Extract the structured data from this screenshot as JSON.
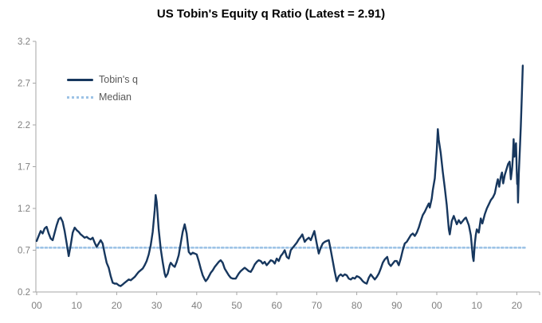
{
  "chart": {
    "title": "US Tobin's Equity q Ratio (Latest = 2.91)",
    "latest_value": "2.91"
  },
  "legend": {
    "series1_label": "Tobin's q",
    "series2_label": "Median"
  },
  "colors": {
    "tobins_q_line": "#17375e",
    "median_line": "#9dc3e6",
    "axis_line": "#a6a6a6",
    "tick_label": "#808080",
    "legend_text": "#595959",
    "title_text": "#000000",
    "background": "#ffffff"
  },
  "chart_data": {
    "type": "line",
    "title": "US Tobin's Equity q Ratio (Latest = 2.91)",
    "xlabel": "",
    "ylabel": "",
    "grid": false,
    "legend_position": "top-left",
    "ylim": [
      0.2,
      3.2
    ],
    "y_ticks": [
      0.2,
      0.7,
      1.2,
      1.7,
      2.2,
      2.7,
      3.2
    ],
    "x_tick_years": [
      1900,
      1910,
      1920,
      1930,
      1940,
      1950,
      1960,
      1970,
      1980,
      1990,
      2000,
      2010,
      2020
    ],
    "x_tick_labels": [
      "00",
      "10",
      "20",
      "30",
      "40",
      "50",
      "60",
      "70",
      "80",
      "90",
      "00",
      "10",
      "20"
    ],
    "xlim": [
      1899.8,
      2025.7
    ],
    "series": [
      {
        "name": "Tobin's q",
        "points": [
          [
            1900,
            0.81
          ],
          [
            1900.5,
            0.87
          ],
          [
            1901,
            0.93
          ],
          [
            1901.5,
            0.9
          ],
          [
            1902,
            0.96
          ],
          [
            1902.5,
            0.98
          ],
          [
            1903,
            0.9
          ],
          [
            1903.5,
            0.84
          ],
          [
            1904,
            0.82
          ],
          [
            1904.5,
            0.91
          ],
          [
            1905,
            1.0
          ],
          [
            1905.5,
            1.07
          ],
          [
            1906,
            1.09
          ],
          [
            1906.5,
            1.04
          ],
          [
            1907,
            0.93
          ],
          [
            1907.5,
            0.78
          ],
          [
            1908,
            0.63
          ],
          [
            1908.5,
            0.76
          ],
          [
            1909,
            0.91
          ],
          [
            1909.5,
            0.97
          ],
          [
            1910,
            0.94
          ],
          [
            1910.5,
            0.92
          ],
          [
            1911,
            0.89
          ],
          [
            1911.5,
            0.87
          ],
          [
            1912,
            0.85
          ],
          [
            1912.5,
            0.86
          ],
          [
            1913,
            0.84
          ],
          [
            1913.5,
            0.83
          ],
          [
            1914,
            0.85
          ],
          [
            1914.5,
            0.79
          ],
          [
            1915,
            0.74
          ],
          [
            1915.5,
            0.78
          ],
          [
            1916,
            0.82
          ],
          [
            1916.5,
            0.78
          ],
          [
            1917,
            0.66
          ],
          [
            1917.5,
            0.55
          ],
          [
            1918,
            0.49
          ],
          [
            1918.5,
            0.39
          ],
          [
            1919,
            0.31
          ],
          [
            1919.5,
            0.3
          ],
          [
            1920,
            0.3
          ],
          [
            1920.5,
            0.28
          ],
          [
            1921,
            0.27
          ],
          [
            1921.5,
            0.29
          ],
          [
            1922,
            0.31
          ],
          [
            1922.5,
            0.33
          ],
          [
            1923,
            0.35
          ],
          [
            1923.5,
            0.34
          ],
          [
            1924,
            0.36
          ],
          [
            1924.5,
            0.38
          ],
          [
            1925,
            0.41
          ],
          [
            1925.5,
            0.44
          ],
          [
            1926,
            0.46
          ],
          [
            1926.5,
            0.48
          ],
          [
            1927,
            0.52
          ],
          [
            1927.5,
            0.57
          ],
          [
            1928,
            0.65
          ],
          [
            1928.5,
            0.76
          ],
          [
            1929,
            0.92
          ],
          [
            1929.5,
            1.18
          ],
          [
            1929.75,
            1.36
          ],
          [
            1930,
            1.28
          ],
          [
            1930.5,
            0.95
          ],
          [
            1931,
            0.72
          ],
          [
            1931.5,
            0.56
          ],
          [
            1932,
            0.42
          ],
          [
            1932.25,
            0.38
          ],
          [
            1932.75,
            0.42
          ],
          [
            1933.25,
            0.52
          ],
          [
            1933.5,
            0.55
          ],
          [
            1934,
            0.52
          ],
          [
            1934.5,
            0.5
          ],
          [
            1935,
            0.56
          ],
          [
            1935.5,
            0.64
          ],
          [
            1936,
            0.78
          ],
          [
            1936.5,
            0.92
          ],
          [
            1937,
            1.01
          ],
          [
            1937.5,
            0.9
          ],
          [
            1938,
            0.68
          ],
          [
            1938.5,
            0.65
          ],
          [
            1939,
            0.67
          ],
          [
            1939.5,
            0.66
          ],
          [
            1940,
            0.65
          ],
          [
            1940.5,
            0.57
          ],
          [
            1941,
            0.48
          ],
          [
            1941.5,
            0.4
          ],
          [
            1942,
            0.35
          ],
          [
            1942.25,
            0.33
          ],
          [
            1942.75,
            0.36
          ],
          [
            1943.5,
            0.43
          ],
          [
            1944,
            0.46
          ],
          [
            1944.5,
            0.5
          ],
          [
            1945,
            0.53
          ],
          [
            1945.5,
            0.56
          ],
          [
            1946,
            0.58
          ],
          [
            1946.5,
            0.55
          ],
          [
            1947,
            0.48
          ],
          [
            1947.5,
            0.44
          ],
          [
            1948,
            0.4
          ],
          [
            1948.5,
            0.37
          ],
          [
            1949,
            0.36
          ],
          [
            1949.75,
            0.36
          ],
          [
            1950.5,
            0.42
          ],
          [
            1951,
            0.45
          ],
          [
            1951.5,
            0.47
          ],
          [
            1952,
            0.49
          ],
          [
            1952.5,
            0.47
          ],
          [
            1953,
            0.45
          ],
          [
            1953.5,
            0.44
          ],
          [
            1954,
            0.48
          ],
          [
            1954.5,
            0.53
          ],
          [
            1955,
            0.56
          ],
          [
            1955.5,
            0.58
          ],
          [
            1956,
            0.57
          ],
          [
            1956.5,
            0.54
          ],
          [
            1957,
            0.56
          ],
          [
            1957.5,
            0.52
          ],
          [
            1958,
            0.55
          ],
          [
            1958.5,
            0.58
          ],
          [
            1959,
            0.57
          ],
          [
            1959.5,
            0.54
          ],
          [
            1960,
            0.6
          ],
          [
            1960.5,
            0.57
          ],
          [
            1961,
            0.63
          ],
          [
            1961.5,
            0.66
          ],
          [
            1962,
            0.7
          ],
          [
            1962.5,
            0.62
          ],
          [
            1963,
            0.6
          ],
          [
            1963.5,
            0.7
          ],
          [
            1964,
            0.73
          ],
          [
            1964.5,
            0.76
          ],
          [
            1965,
            0.79
          ],
          [
            1965.5,
            0.83
          ],
          [
            1966,
            0.86
          ],
          [
            1966.4,
            0.89
          ],
          [
            1967,
            0.8
          ],
          [
            1967.5,
            0.83
          ],
          [
            1968,
            0.85
          ],
          [
            1968.5,
            0.82
          ],
          [
            1969,
            0.88
          ],
          [
            1969.4,
            0.93
          ],
          [
            1970,
            0.78
          ],
          [
            1970.5,
            0.66
          ],
          [
            1971,
            0.73
          ],
          [
            1971.5,
            0.78
          ],
          [
            1972,
            0.8
          ],
          [
            1972.5,
            0.81
          ],
          [
            1973,
            0.82
          ],
          [
            1973.5,
            0.7
          ],
          [
            1974,
            0.57
          ],
          [
            1974.5,
            0.44
          ],
          [
            1975,
            0.33
          ],
          [
            1975.5,
            0.39
          ],
          [
            1976,
            0.41
          ],
          [
            1976.5,
            0.39
          ],
          [
            1977,
            0.41
          ],
          [
            1977.5,
            0.4
          ],
          [
            1978,
            0.36
          ],
          [
            1978.5,
            0.35
          ],
          [
            1979,
            0.37
          ],
          [
            1979.5,
            0.36
          ],
          [
            1980,
            0.39
          ],
          [
            1980.5,
            0.38
          ],
          [
            1981,
            0.36
          ],
          [
            1981.5,
            0.33
          ],
          [
            1982,
            0.31
          ],
          [
            1982.5,
            0.3
          ],
          [
            1983,
            0.37
          ],
          [
            1983.5,
            0.41
          ],
          [
            1984,
            0.38
          ],
          [
            1984.5,
            0.35
          ],
          [
            1985,
            0.38
          ],
          [
            1985.5,
            0.42
          ],
          [
            1986,
            0.48
          ],
          [
            1986.5,
            0.55
          ],
          [
            1987,
            0.59
          ],
          [
            1987.6,
            0.62
          ],
          [
            1988,
            0.54
          ],
          [
            1988.5,
            0.51
          ],
          [
            1989,
            0.54
          ],
          [
            1989.5,
            0.57
          ],
          [
            1990,
            0.57
          ],
          [
            1990.5,
            0.52
          ],
          [
            1991,
            0.6
          ],
          [
            1991.5,
            0.7
          ],
          [
            1992,
            0.78
          ],
          [
            1992.5,
            0.8
          ],
          [
            1993,
            0.84
          ],
          [
            1993.5,
            0.88
          ],
          [
            1994,
            0.9
          ],
          [
            1994.5,
            0.87
          ],
          [
            1995,
            0.91
          ],
          [
            1995.5,
            0.97
          ],
          [
            1996,
            1.05
          ],
          [
            1996.5,
            1.12
          ],
          [
            1997,
            1.16
          ],
          [
            1997.5,
            1.21
          ],
          [
            1998,
            1.26
          ],
          [
            1998.25,
            1.21
          ],
          [
            1998.75,
            1.32
          ],
          [
            1999,
            1.42
          ],
          [
            1999.5,
            1.56
          ],
          [
            2000,
            1.9
          ],
          [
            2000.25,
            2.15
          ],
          [
            2000.5,
            2.02
          ],
          [
            2001,
            1.86
          ],
          [
            2001.5,
            1.64
          ],
          [
            2002,
            1.45
          ],
          [
            2002.5,
            1.24
          ],
          [
            2003,
            0.95
          ],
          [
            2003.25,
            0.89
          ],
          [
            2003.75,
            1.05
          ],
          [
            2004.25,
            1.11
          ],
          [
            2005,
            1.01
          ],
          [
            2005.5,
            1.06
          ],
          [
            2006,
            1.02
          ],
          [
            2006.5,
            1.05
          ],
          [
            2007,
            1.08
          ],
          [
            2007.3,
            1.09
          ],
          [
            2008,
            1.0
          ],
          [
            2008.5,
            0.88
          ],
          [
            2009,
            0.62
          ],
          [
            2009.2,
            0.57
          ],
          [
            2009.5,
            0.78
          ],
          [
            2009.75,
            0.88
          ],
          [
            2010,
            0.95
          ],
          [
            2010.5,
            0.91
          ],
          [
            2011,
            1.08
          ],
          [
            2011.4,
            1.02
          ],
          [
            2012,
            1.13
          ],
          [
            2012.5,
            1.2
          ],
          [
            2013,
            1.25
          ],
          [
            2013.5,
            1.3
          ],
          [
            2014,
            1.33
          ],
          [
            2014.5,
            1.38
          ],
          [
            2015,
            1.5
          ],
          [
            2015.25,
            1.55
          ],
          [
            2015.6,
            1.46
          ],
          [
            2016,
            1.58
          ],
          [
            2016.3,
            1.63
          ],
          [
            2016.6,
            1.5
          ],
          [
            2017,
            1.6
          ],
          [
            2017.5,
            1.68
          ],
          [
            2017.8,
            1.73
          ],
          [
            2018.2,
            1.76
          ],
          [
            2018.5,
            1.55
          ],
          [
            2018.8,
            1.67
          ],
          [
            2019,
            1.8
          ],
          [
            2019.2,
            2.03
          ],
          [
            2019.4,
            1.82
          ],
          [
            2019.6,
            1.92
          ],
          [
            2019.8,
            1.98
          ],
          [
            2020,
            1.62
          ],
          [
            2020.1,
            1.49
          ],
          [
            2020.2,
            1.58
          ],
          [
            2020.3,
            1.27
          ],
          [
            2020.5,
            1.62
          ],
          [
            2020.75,
            1.9
          ],
          [
            2021,
            2.18
          ],
          [
            2021.25,
            2.55
          ],
          [
            2021.5,
            2.91
          ]
        ]
      },
      {
        "name": "Median",
        "style": "dotted",
        "constant_value": 0.73,
        "x_span": [
          1900,
          2022.3
        ]
      }
    ]
  }
}
